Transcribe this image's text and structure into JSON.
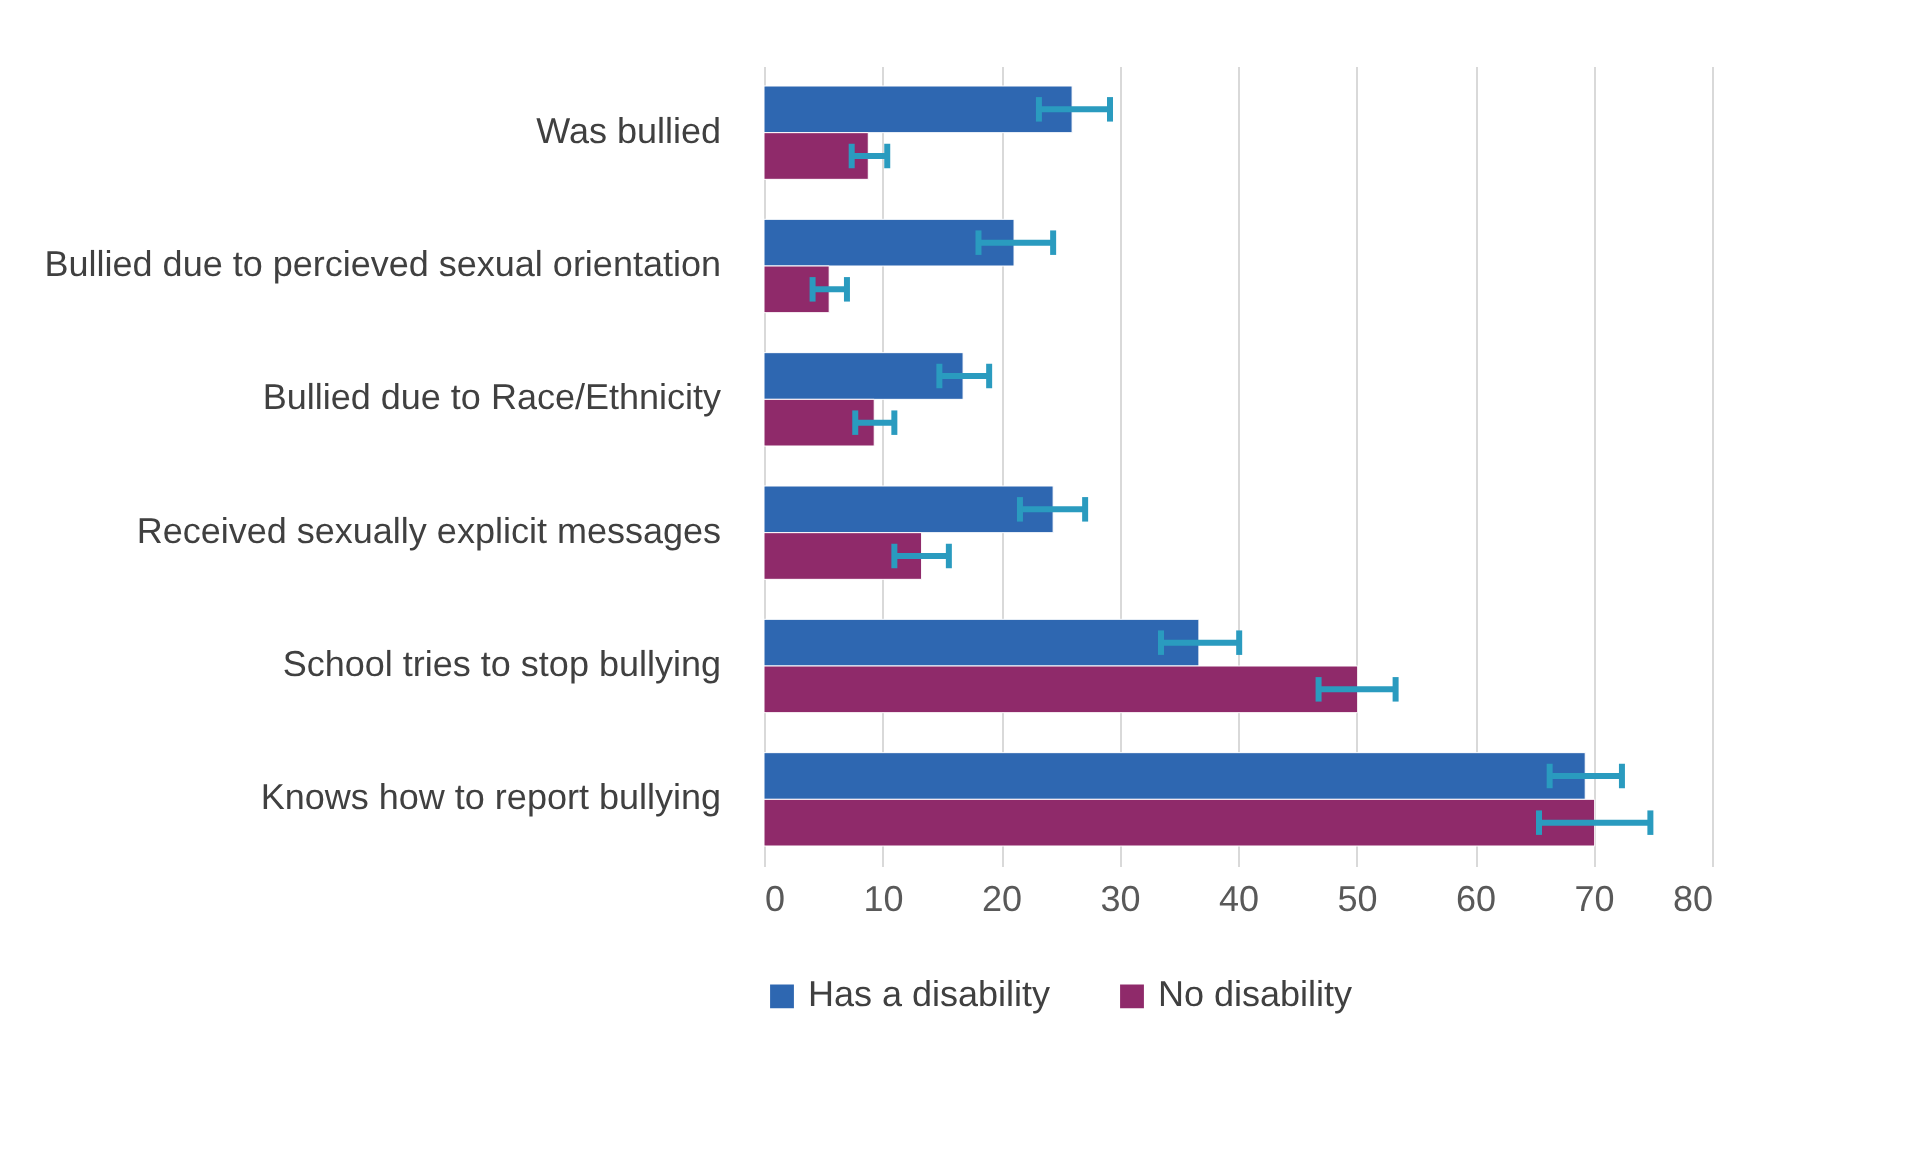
{
  "chart_data": {
    "type": "bar",
    "orientation": "horizontal",
    "categories": [
      "Was bullied",
      "Bullied due to percieved sexual orientation",
      "Bullied due to Race/Ethnicity ",
      "Received sexually explicit messages ",
      "School tries to stop bullying",
      "Knows how to report bullying"
    ],
    "series": [
      {
        "name": "Has a disability",
        "color": "#2e67b1",
        "values": [
          26.0,
          21.1,
          16.8,
          24.4,
          36.7,
          69.3
        ],
        "errors": [
          [
            23.2,
            29.2
          ],
          [
            18.1,
            24.4
          ],
          [
            14.8,
            19.0
          ],
          [
            21.6,
            27.1
          ],
          [
            33.5,
            40.1
          ],
          [
            66.3,
            72.4
          ]
        ]
      },
      {
        "name": "No disability",
        "color": "#8f2a6a",
        "values": [
          8.8,
          5.5,
          9.3,
          13.3,
          50.1,
          70.1
        ],
        "errors": [
          [
            7.4,
            10.4
          ],
          [
            4.1,
            7.0
          ],
          [
            7.7,
            11.0
          ],
          [
            11.0,
            15.6
          ],
          [
            46.8,
            53.3
          ],
          [
            65.4,
            74.8
          ]
        ]
      }
    ],
    "xlim": [
      0,
      80
    ],
    "xticks": [
      0,
      10,
      20,
      30,
      40,
      50,
      60,
      70,
      80
    ],
    "grid": "x",
    "legend": "bottom"
  }
}
